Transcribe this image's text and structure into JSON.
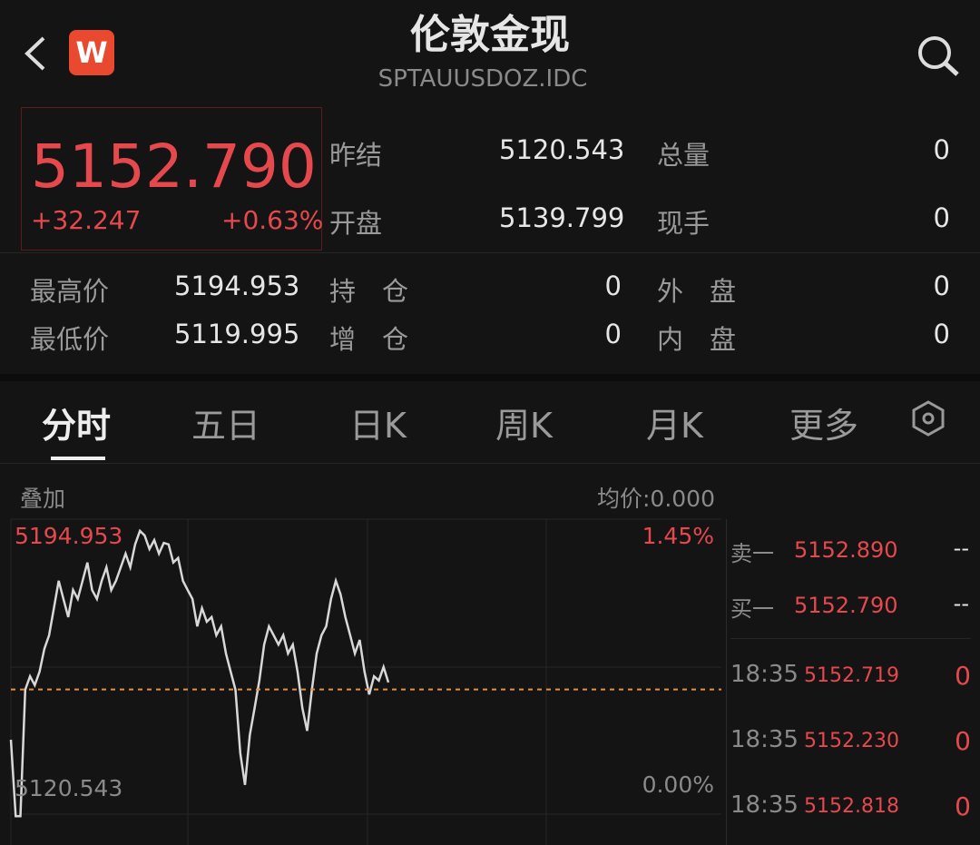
{
  "header": {
    "title": "伦敦金现",
    "code": "SPTAUUSDOZ.IDC",
    "logo_letter": "W",
    "brand_color": "#e8492f"
  },
  "quote": {
    "price": "5152.790",
    "change": "+32.247",
    "change_pct": "+0.63%"
  },
  "stats": [
    {
      "label": "昨结",
      "value": "5120.543"
    },
    {
      "label": "总量",
      "value": "0"
    },
    {
      "label": "开盘",
      "value": "5139.799"
    },
    {
      "label": "现手",
      "value": "0"
    },
    {
      "label": "最高价",
      "value": "5194.953"
    },
    {
      "label": "持　仓",
      "value": "0"
    },
    {
      "label": "外　盘",
      "value": "0"
    },
    {
      "label": "最低价",
      "value": "5119.995"
    },
    {
      "label": "增　仓",
      "value": "0"
    },
    {
      "label": "内　盘",
      "value": "0"
    }
  ],
  "tabs": [
    "分时",
    "五日",
    "日K",
    "周K",
    "月K",
    "更多"
  ],
  "chart_toolbar": {
    "overlay": "叠加",
    "avg_price": "均价:0.000"
  },
  "chart_data": {
    "type": "line",
    "y_top_label": "5194.953",
    "y_bottom_label": "5120.543",
    "pct_top_label": "1.45%",
    "pct_bottom_label": "0.00%",
    "ylim": [
      5120.543,
      5194.953
    ],
    "current_price_line": 5152.79,
    "line_color": "#d8d8d8",
    "ref_line_color": "#e8913c",
    "values": [
      5139.8,
      5120.0,
      5120.0,
      5152.7,
      5156.2,
      5153.9,
      5157.4,
      5163.3,
      5166.8,
      5173.8,
      5180.9,
      5176.2,
      5171.5,
      5178.5,
      5176.2,
      5180.9,
      5185.6,
      5178.5,
      5176.2,
      5180.9,
      5184.4,
      5178.5,
      5180.9,
      5184.4,
      5187.9,
      5184.4,
      5190.3,
      5193.8,
      5192.6,
      5189.1,
      5191.4,
      5187.9,
      5190.7,
      5190.3,
      5185.6,
      5186.8,
      5180.9,
      5178.5,
      5176.2,
      5169.1,
      5173.8,
      5170.3,
      5171.5,
      5166.8,
      5169.1,
      5162.1,
      5157.4,
      5152.7,
      5136.3,
      5128.1,
      5141.0,
      5148.0,
      5155.1,
      5164.4,
      5169.1,
      5166.8,
      5164.4,
      5166.8,
      5162.1,
      5164.4,
      5157.4,
      5148.0,
      5142.1,
      5152.7,
      5162.1,
      5166.8,
      5169.1,
      5176.2,
      5180.9,
      5177.4,
      5171.5,
      5166.8,
      5162.1,
      5165.6,
      5157.4,
      5151.5,
      5156.2,
      5155.1,
      5158.6,
      5154.6
    ]
  },
  "order_book": [
    {
      "label": "卖一",
      "price": "5152.890",
      "vol": "--"
    },
    {
      "label": "买一",
      "price": "5152.790",
      "vol": "--"
    }
  ],
  "ticks": [
    {
      "time": "18:35",
      "price": "5152.719",
      "vol": "0"
    },
    {
      "time": "18:35",
      "price": "5152.230",
      "vol": "0"
    },
    {
      "time": "18:35",
      "price": "5152.818",
      "vol": "0"
    }
  ]
}
